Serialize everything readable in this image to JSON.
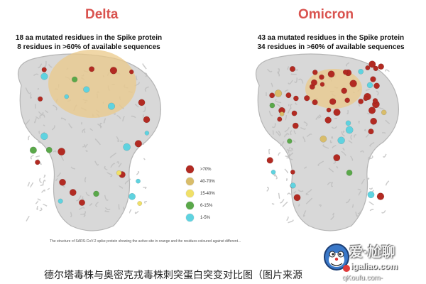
{
  "panels": [
    {
      "title": "Delta",
      "title_color": "#d9534f",
      "subtitle_count": "18 aa mutated residues in the Spike protein",
      "subtitle_line2": "8 residues in >60% of available sequences"
    },
    {
      "title": "Omicron",
      "title_color": "#d9534f",
      "subtitle_count": "43 aa mutated residues in the Spike protein",
      "subtitle_line2": "34 residues in >60% of available sequences"
    }
  ],
  "legend": [
    {
      "label": ">70%",
      "color": "#b22a22"
    },
    {
      "label": "40-70%",
      "color": "#d9bd6a"
    },
    {
      "label": "15-40%",
      "color": "#f0e068"
    },
    {
      "label": "6-15%",
      "color": "#5aa84a"
    },
    {
      "label": "1-5%",
      "color": "#5fd3e0"
    }
  ],
  "colors": {
    "protein_body": "#d8d8d8",
    "protein_outline": "#b5b5b5",
    "active_site": "#ebc98a"
  },
  "caption": "The structure of SARS-CoV-2 spike protein showing the active site in orange and the residues coloured against different...",
  "cn_caption": "德尔塔毒株与奥密克戎毒株刺突蛋白突变对比图（图片来源",
  "watermark": {
    "title": "爱·尬聊",
    "url": "igaliao.com",
    "url2": "qKoufu.com-",
    "logo_icon": "cartoon-mascot-icon"
  }
}
